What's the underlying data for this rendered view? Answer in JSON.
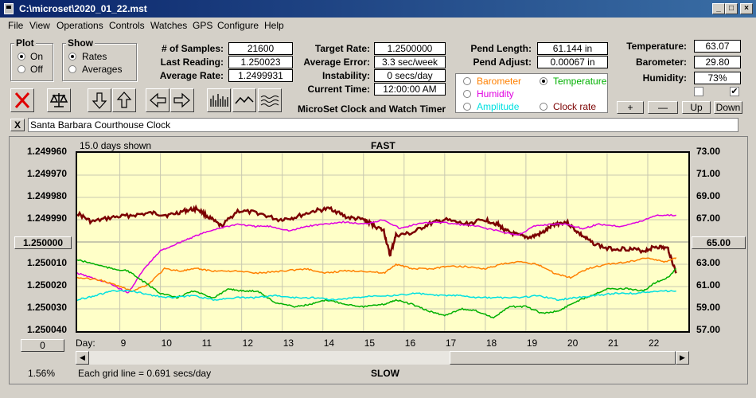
{
  "title": "C:\\microset\\2020_01_22.mst",
  "menu": [
    "File",
    "View",
    "Operations",
    "Controls",
    "Watches",
    "GPS",
    "Configure",
    "Help"
  ],
  "plot_group": {
    "title": "Plot",
    "on": "On",
    "off": "Off"
  },
  "show_group": {
    "title": "Show",
    "rates": "Rates",
    "averages": "Averages"
  },
  "stats": {
    "samples_label": "# of Samples:",
    "samples": "21600",
    "last_label": "Last Reading:",
    "last": "1.250023",
    "avg_label": "Average Rate:",
    "avg": "1.2499931"
  },
  "rates": {
    "target_label": "Target Rate:",
    "target": "1.2500000",
    "error_label": "Average Error:",
    "error": "3.3 sec/week",
    "instab_label": "Instability:",
    "instab": "0 secs/day",
    "time_label": "Current Time:",
    "time": "12:00:00 AM"
  },
  "app_name": "MicroSet Clock and Watch Timer",
  "pend": {
    "length_label": "Pend Length:",
    "length": "61.144 in",
    "adjust_label": "Pend Adjust:",
    "adjust": "0.00067 in"
  },
  "env": {
    "temp_label": "Temperature:",
    "temp": "63.07",
    "baro_label": "Barometer:",
    "baro": "29.80",
    "hum_label": "Humidity:",
    "hum": "73%"
  },
  "overlay_options": {
    "barometer": "Barometer",
    "temperature": "Temperature",
    "humidity": "Humidity",
    "amplitude": "Amplitude",
    "clock_rate": "Clock rate"
  },
  "buttons": {
    "plus": "+",
    "minus": "—",
    "up": "Up",
    "down": "Down",
    "close_x": "X",
    "zero": "0"
  },
  "clock_name": "Santa Barbara Courthouse Clock",
  "chart_labels": {
    "days_shown": "15.0 days shown",
    "fast": "FAST",
    "slow": "SLOW",
    "grid_note": "Each grid line = 0.691 secs/day",
    "day": "Day:",
    "left_mid": "1.250000",
    "right_mid": "65.00",
    "pct": "1.56%"
  },
  "colors": {
    "rate": "#7b0000",
    "barometer": "#ff8000",
    "temperature": "#00b000",
    "humidity": "#e000e0",
    "amplitude": "#00e0e0",
    "plot_bg": "#ffffc8"
  },
  "chart_data": {
    "type": "line",
    "xlabel": "Day:",
    "x_ticks": [
      "9",
      "10",
      "11",
      "12",
      "13",
      "14",
      "15",
      "16",
      "17",
      "18",
      "19",
      "20",
      "21",
      "22"
    ],
    "y_left_ticks": [
      "1.249960",
      "1.249970",
      "1.249980",
      "1.249990",
      "1.250000",
      "1.250010",
      "1.250020",
      "1.250030",
      "1.250040"
    ],
    "y_right_ticks": [
      "73.00",
      "71.00",
      "69.00",
      "67.00",
      "65.00",
      "63.00",
      "61.00",
      "59.00",
      "57.00"
    ],
    "ylim_left": [
      1.24996,
      1.25004
    ],
    "ylim_right": [
      57,
      73
    ],
    "xlim": [
      7.95,
      23.0
    ],
    "series": [
      {
        "key": "rate",
        "axis": "left",
        "color": "#7b0000",
        "width": 2.5,
        "points": [
          [
            7.95,
            1.249987
          ],
          [
            8.3,
            1.249991
          ],
          [
            8.8,
            1.249989
          ],
          [
            9.3,
            1.249988
          ],
          [
            9.8,
            1.249987
          ],
          [
            10.2,
            1.249988
          ],
          [
            10.6,
            1.249986
          ],
          [
            10.9,
            1.249985
          ],
          [
            11.2,
            1.249989
          ],
          [
            11.5,
            1.249993
          ],
          [
            11.9,
            1.249986
          ],
          [
            12.4,
            1.249987
          ],
          [
            12.9,
            1.24999
          ],
          [
            13.3,
            1.249989
          ],
          [
            13.8,
            1.249986
          ],
          [
            14.2,
            1.249985
          ],
          [
            14.6,
            1.249989
          ],
          [
            15.0,
            1.24999
          ],
          [
            15.2,
            1.249992
          ],
          [
            15.5,
            1.249995
          ],
          [
            15.65,
            1.250006
          ],
          [
            15.8,
            1.249997
          ],
          [
            16.2,
            1.249996
          ],
          [
            16.6,
            1.249992
          ],
          [
            17.0,
            1.24999
          ],
          [
            17.5,
            1.249992
          ],
          [
            18.0,
            1.24999
          ],
          [
            18.3,
            1.249992
          ],
          [
            18.5,
            1.249995
          ],
          [
            18.8,
            1.249997
          ],
          [
            19.1,
            1.249998
          ],
          [
            19.4,
            1.249996
          ],
          [
            19.7,
            1.249992
          ],
          [
            20.0,
            1.249991
          ],
          [
            20.3,
            1.249996
          ],
          [
            20.6,
            1.25
          ],
          [
            21.0,
            1.250003
          ],
          [
            21.5,
            1.250003
          ],
          [
            21.9,
            1.250004
          ],
          [
            22.2,
            1.250002
          ],
          [
            22.5,
            1.250003
          ],
          [
            22.7,
            1.250014
          ]
        ]
      },
      {
        "key": "humidity",
        "axis": "left",
        "color": "#e000e0",
        "width": 1.5,
        "points": [
          [
            7.95,
            1.250014
          ],
          [
            8.3,
            1.250016
          ],
          [
            8.8,
            1.250019
          ],
          [
            9.2,
            1.250023
          ],
          [
            9.6,
            1.250012
          ],
          [
            10.0,
            1.250004
          ],
          [
            10.5,
            1.25
          ],
          [
            10.9,
            1.249997
          ],
          [
            11.4,
            1.249994
          ],
          [
            11.9,
            1.249992
          ],
          [
            12.3,
            1.249993
          ],
          [
            12.7,
            1.249993
          ],
          [
            13.2,
            1.249995
          ],
          [
            13.6,
            1.249993
          ],
          [
            14.0,
            1.249992
          ],
          [
            14.5,
            1.249991
          ],
          [
            15.0,
            1.249992
          ],
          [
            15.5,
            1.24999
          ],
          [
            15.9,
            1.249994
          ],
          [
            16.3,
            1.249992
          ],
          [
            16.8,
            1.249991
          ],
          [
            17.3,
            1.249992
          ],
          [
            17.8,
            1.249993
          ],
          [
            18.3,
            1.249995
          ],
          [
            18.8,
            1.249997
          ],
          [
            19.2,
            1.249993
          ],
          [
            19.6,
            1.249992
          ],
          [
            20.0,
            1.249992
          ],
          [
            20.4,
            1.249994
          ],
          [
            20.8,
            1.249992
          ],
          [
            21.3,
            1.249993
          ],
          [
            21.8,
            1.249991
          ],
          [
            22.2,
            1.249988
          ],
          [
            22.7,
            1.249988
          ]
        ]
      },
      {
        "key": "barometer",
        "axis": "left",
        "color": "#ff8000",
        "width": 1.5,
        "points": [
          [
            7.95,
            1.250016
          ],
          [
            8.5,
            1.250017
          ],
          [
            9.0,
            1.25002
          ],
          [
            9.3,
            1.250022
          ],
          [
            9.7,
            1.250019
          ],
          [
            10.1,
            1.250012
          ],
          [
            10.5,
            1.250013
          ],
          [
            10.9,
            1.250012
          ],
          [
            11.3,
            1.250013
          ],
          [
            11.8,
            1.250013
          ],
          [
            12.4,
            1.250014
          ],
          [
            13.0,
            1.250013
          ],
          [
            13.6,
            1.250012
          ],
          [
            14.0,
            1.250014
          ],
          [
            14.5,
            1.250013
          ],
          [
            15.0,
            1.250013
          ],
          [
            15.5,
            1.250014
          ],
          [
            15.8,
            1.25001
          ],
          [
            16.2,
            1.250012
          ],
          [
            16.7,
            1.250012
          ],
          [
            17.0,
            1.250011
          ],
          [
            17.5,
            1.250011
          ],
          [
            18.0,
            1.250012
          ],
          [
            18.4,
            1.25001
          ],
          [
            18.8,
            1.250009
          ],
          [
            19.3,
            1.25001
          ],
          [
            19.7,
            1.250014
          ],
          [
            20.1,
            1.250016
          ],
          [
            20.5,
            1.250012
          ],
          [
            21.0,
            1.25001
          ],
          [
            21.5,
            1.250009
          ],
          [
            22.0,
            1.250007
          ],
          [
            22.4,
            1.250009
          ],
          [
            22.7,
            1.250007
          ]
        ]
      },
      {
        "key": "temperature",
        "axis": "left",
        "color": "#00b000",
        "width": 1.5,
        "points": [
          [
            7.95,
            1.250008
          ],
          [
            8.4,
            1.25001
          ],
          [
            8.8,
            1.250012
          ],
          [
            9.2,
            1.250013
          ],
          [
            9.6,
            1.250018
          ],
          [
            10.0,
            1.250023
          ],
          [
            10.4,
            1.250025
          ],
          [
            10.8,
            1.250022
          ],
          [
            11.3,
            1.250025
          ],
          [
            11.7,
            1.250021
          ],
          [
            12.0,
            1.250022
          ],
          [
            12.4,
            1.250022
          ],
          [
            12.8,
            1.250027
          ],
          [
            13.3,
            1.250029
          ],
          [
            13.7,
            1.250028
          ],
          [
            14.1,
            1.250026
          ],
          [
            14.6,
            1.250028
          ],
          [
            15.0,
            1.250029
          ],
          [
            15.5,
            1.250028
          ],
          [
            15.8,
            1.250026
          ],
          [
            16.2,
            1.250028
          ],
          [
            16.6,
            1.250031
          ],
          [
            17.0,
            1.250033
          ],
          [
            17.4,
            1.25003
          ],
          [
            17.8,
            1.250031
          ],
          [
            18.2,
            1.250034
          ],
          [
            18.6,
            1.250029
          ],
          [
            19.0,
            1.250029
          ],
          [
            19.4,
            1.250032
          ],
          [
            19.8,
            1.250031
          ],
          [
            20.2,
            1.250027
          ],
          [
            20.6,
            1.250024
          ],
          [
            21.0,
            1.250021
          ],
          [
            21.5,
            1.250021
          ],
          [
            21.9,
            1.250022
          ],
          [
            22.2,
            1.250018
          ],
          [
            22.5,
            1.250016
          ],
          [
            22.7,
            1.250012
          ]
        ]
      },
      {
        "key": "amplitude",
        "axis": "left",
        "color": "#00e0e0",
        "width": 1.5,
        "points": [
          [
            7.95,
            1.250026
          ],
          [
            8.4,
            1.250024
          ],
          [
            8.8,
            1.250022
          ],
          [
            9.3,
            1.250022
          ],
          [
            9.8,
            1.250024
          ],
          [
            10.3,
            1.250025
          ],
          [
            10.8,
            1.250024
          ],
          [
            11.3,
            1.250026
          ],
          [
            11.8,
            1.250025
          ],
          [
            12.3,
            1.250025
          ],
          [
            12.8,
            1.250024
          ],
          [
            13.3,
            1.250025
          ],
          [
            13.8,
            1.250025
          ],
          [
            14.3,
            1.250026
          ],
          [
            14.8,
            1.250025
          ],
          [
            15.3,
            1.250024
          ],
          [
            15.8,
            1.250024
          ],
          [
            16.3,
            1.250023
          ],
          [
            16.8,
            1.250024
          ],
          [
            17.3,
            1.250024
          ],
          [
            17.8,
            1.250025
          ],
          [
            18.3,
            1.250025
          ],
          [
            18.8,
            1.250025
          ],
          [
            19.3,
            1.250024
          ],
          [
            19.8,
            1.250026
          ],
          [
            20.2,
            1.250025
          ],
          [
            20.7,
            1.250024
          ],
          [
            21.2,
            1.250023
          ],
          [
            21.7,
            1.250023
          ],
          [
            22.2,
            1.250022
          ],
          [
            22.7,
            1.250022
          ]
        ]
      }
    ]
  }
}
